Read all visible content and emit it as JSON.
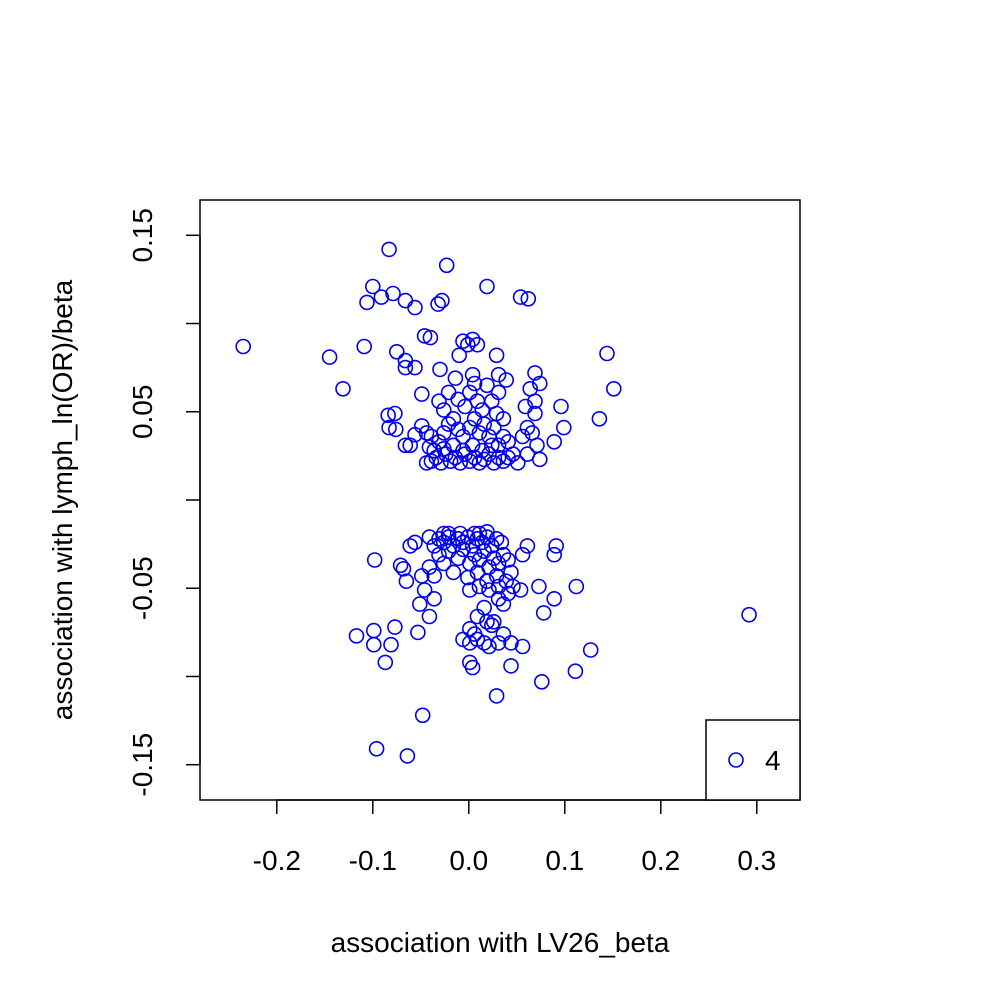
{
  "chart_data": {
    "type": "scatter",
    "title": "",
    "xlabel": "association with LV26_beta",
    "ylabel": "association with lymph_ln(OR)/beta",
    "xlim": [
      -0.28,
      0.345
    ],
    "ylim": [
      -0.17,
      0.17
    ],
    "x_ticks": [
      {
        "value": -0.2,
        "label": "-0.2"
      },
      {
        "value": -0.1,
        "label": "-0.1"
      },
      {
        "value": 0.0,
        "label": "0.0"
      },
      {
        "value": 0.1,
        "label": "0.1"
      },
      {
        "value": 0.2,
        "label": "0.2"
      },
      {
        "value": 0.3,
        "label": "0.3"
      }
    ],
    "y_ticks": [
      {
        "value": 0.15,
        "label": "0.15"
      },
      {
        "value": 0.1,
        "label": ""
      },
      {
        "value": 0.05,
        "label": "0.05"
      },
      {
        "value": 0.0,
        "label": ""
      },
      {
        "value": -0.05,
        "label": "-0.05"
      },
      {
        "value": -0.1,
        "label": ""
      },
      {
        "value": -0.15,
        "label": "-0.15"
      }
    ],
    "grid": false,
    "legend": {
      "position": "bottom-right",
      "entries": [
        {
          "label": "4",
          "marker": "open-circle"
        }
      ]
    },
    "series": [
      {
        "color": "#0000ee",
        "marker": "open-circle",
        "points": [
          [
            -0.235,
            0.087
          ],
          [
            -0.145,
            0.081
          ],
          [
            -0.131,
            0.063
          ],
          [
            -0.109,
            0.087
          ],
          [
            -0.106,
            0.112
          ],
          [
            -0.1,
            0.121
          ],
          [
            -0.091,
            0.115
          ],
          [
            -0.083,
            0.142
          ],
          [
            -0.079,
            0.117
          ],
          [
            -0.066,
            0.113
          ],
          [
            -0.056,
            0.109
          ],
          [
            -0.032,
            0.111
          ],
          [
            -0.028,
            0.113
          ],
          [
            -0.023,
            0.133
          ],
          [
            0.019,
            0.121
          ],
          [
            0.054,
            0.115
          ],
          [
            0.062,
            0.114
          ],
          [
            -0.046,
            0.093
          ],
          [
            -0.04,
            0.092
          ],
          [
            -0.075,
            0.084
          ],
          [
            -0.066,
            0.079
          ],
          [
            -0.066,
            0.075
          ],
          [
            -0.056,
            0.075
          ],
          [
            -0.03,
            0.074
          ],
          [
            -0.01,
            0.082
          ],
          [
            -0.006,
            0.09
          ],
          [
            -0.001,
            0.088
          ],
          [
            0.004,
            0.091
          ],
          [
            0.009,
            0.088
          ],
          [
            0.029,
            0.082
          ],
          [
            -0.014,
            0.069
          ],
          [
            0.004,
            0.071
          ],
          [
            0.006,
            0.066
          ],
          [
            0.019,
            0.065
          ],
          [
            0.031,
            0.071
          ],
          [
            0.039,
            0.068
          ],
          [
            0.069,
            0.072
          ],
          [
            0.074,
            0.066
          ],
          [
            0.064,
            0.063
          ],
          [
            0.144,
            0.083
          ],
          [
            0.151,
            0.063
          ],
          [
            0.136,
            0.046
          ],
          [
            0.096,
            0.053
          ],
          [
            0.099,
            0.041
          ],
          [
            0.089,
            0.033
          ],
          [
            0.069,
            0.056
          ],
          [
            0.069,
            0.049
          ],
          [
            0.059,
            0.053
          ],
          [
            -0.049,
            0.06
          ],
          [
            -0.031,
            0.056
          ],
          [
            -0.026,
            0.051
          ],
          [
            -0.021,
            0.061
          ],
          [
            -0.011,
            0.057
          ],
          [
            -0.004,
            0.053
          ],
          [
            0.001,
            0.061
          ],
          [
            0.009,
            0.056
          ],
          [
            0.014,
            0.051
          ],
          [
            0.024,
            0.056
          ],
          [
            0.031,
            0.061
          ],
          [
            0.029,
            0.049
          ],
          [
            0.036,
            0.046
          ],
          [
            -0.084,
            0.048
          ],
          [
            -0.077,
            0.049
          ],
          [
            -0.083,
            0.041
          ],
          [
            -0.076,
            0.04
          ],
          [
            -0.066,
            0.031
          ],
          [
            -0.061,
            0.031
          ],
          [
            -0.056,
            0.037
          ],
          [
            -0.049,
            0.042
          ],
          [
            -0.044,
            0.038
          ],
          [
            -0.039,
            0.036
          ],
          [
            -0.041,
            0.03
          ],
          [
            -0.036,
            0.028
          ],
          [
            -0.031,
            0.033
          ],
          [
            -0.026,
            0.038
          ],
          [
            -0.021,
            0.043
          ],
          [
            -0.016,
            0.046
          ],
          [
            -0.011,
            0.04
          ],
          [
            -0.006,
            0.036
          ],
          [
            0.001,
            0.041
          ],
          [
            0.006,
            0.046
          ],
          [
            0.011,
            0.038
          ],
          [
            0.016,
            0.043
          ],
          [
            0.021,
            0.036
          ],
          [
            0.026,
            0.041
          ],
          [
            0.031,
            0.031
          ],
          [
            0.036,
            0.036
          ],
          [
            0.041,
            0.033
          ],
          [
            0.056,
            0.036
          ],
          [
            0.061,
            0.041
          ],
          [
            0.066,
            0.038
          ],
          [
            0.071,
            0.031
          ],
          [
            0.074,
            0.023
          ],
          [
            0.061,
            0.026
          ],
          [
            0.051,
            0.021
          ],
          [
            0.046,
            0.026
          ],
          [
            0.041,
            0.024
          ],
          [
            0.036,
            0.022
          ],
          [
            0.031,
            0.024
          ],
          [
            0.026,
            0.021
          ],
          [
            0.021,
            0.026
          ],
          [
            0.016,
            0.023
          ],
          [
            0.011,
            0.021
          ],
          [
            0.006,
            0.024
          ],
          [
            0.001,
            0.022
          ],
          [
            -0.004,
            0.026
          ],
          [
            -0.009,
            0.021
          ],
          [
            -0.014,
            0.024
          ],
          [
            -0.019,
            0.022
          ],
          [
            -0.024,
            0.026
          ],
          [
            -0.029,
            0.021
          ],
          [
            -0.034,
            0.024
          ],
          [
            -0.039,
            0.022
          ],
          [
            -0.044,
            0.021
          ],
          [
            -0.016,
            0.031
          ],
          [
            -0.006,
            0.028
          ],
          [
            0.004,
            0.031
          ],
          [
            0.014,
            0.028
          ],
          [
            0.024,
            0.031
          ],
          [
            -0.026,
            0.029
          ],
          [
            -0.098,
            -0.034
          ],
          [
            -0.087,
            -0.092
          ],
          [
            -0.081,
            -0.082
          ],
          [
            -0.099,
            -0.082
          ],
          [
            -0.099,
            -0.074
          ],
          [
            -0.117,
            -0.077
          ],
          [
            -0.077,
            -0.072
          ],
          [
            -0.071,
            -0.037
          ],
          [
            -0.068,
            -0.039
          ],
          [
            -0.065,
            -0.046
          ],
          [
            -0.061,
            -0.026
          ],
          [
            -0.056,
            -0.024
          ],
          [
            -0.051,
            -0.059
          ],
          [
            -0.049,
            -0.043
          ],
          [
            -0.046,
            -0.051
          ],
          [
            -0.041,
            -0.066
          ],
          [
            -0.036,
            -0.056
          ],
          [
            -0.053,
            -0.075
          ],
          [
            -0.048,
            -0.122
          ],
          [
            -0.096,
            -0.141
          ],
          [
            -0.064,
            -0.145
          ],
          [
            -0.041,
            -0.021
          ],
          [
            -0.036,
            -0.026
          ],
          [
            -0.031,
            -0.022
          ],
          [
            -0.026,
            -0.024
          ],
          [
            -0.021,
            -0.021
          ],
          [
            -0.016,
            -0.026
          ],
          [
            -0.011,
            -0.022
          ],
          [
            -0.006,
            -0.024
          ],
          [
            -0.001,
            -0.021
          ],
          [
            0.004,
            -0.026
          ],
          [
            0.009,
            -0.022
          ],
          [
            0.014,
            -0.024
          ],
          [
            0.019,
            -0.021
          ],
          [
            0.024,
            -0.026
          ],
          [
            0.029,
            -0.022
          ],
          [
            0.034,
            -0.024
          ],
          [
            -0.031,
            -0.031
          ],
          [
            -0.026,
            -0.036
          ],
          [
            -0.021,
            -0.029
          ],
          [
            -0.011,
            -0.033
          ],
          [
            -0.006,
            -0.028
          ],
          [
            0.001,
            -0.036
          ],
          [
            0.006,
            -0.031
          ],
          [
            0.011,
            -0.034
          ],
          [
            0.016,
            -0.029
          ],
          [
            0.021,
            -0.038
          ],
          [
            0.026,
            -0.033
          ],
          [
            0.031,
            -0.036
          ],
          [
            0.036,
            -0.031
          ],
          [
            0.041,
            -0.034
          ],
          [
            -0.041,
            -0.038
          ],
          [
            -0.036,
            -0.043
          ],
          [
            -0.016,
            -0.041
          ],
          [
            -0.001,
            -0.044
          ],
          [
            0.009,
            -0.041
          ],
          [
            0.019,
            -0.046
          ],
          [
            0.029,
            -0.043
          ],
          [
            0.039,
            -0.046
          ],
          [
            0.044,
            -0.041
          ],
          [
            0.001,
            -0.051
          ],
          [
            0.011,
            -0.049
          ],
          [
            0.021,
            -0.051
          ],
          [
            0.031,
            -0.049
          ],
          [
            0.041,
            -0.053
          ],
          [
            0.046,
            -0.049
          ],
          [
            0.054,
            -0.051
          ],
          [
            0.056,
            -0.031
          ],
          [
            0.061,
            -0.026
          ],
          [
            0.091,
            -0.026
          ],
          [
            0.089,
            -0.031
          ],
          [
            0.073,
            -0.049
          ],
          [
            0.112,
            -0.049
          ],
          [
            0.089,
            -0.056
          ],
          [
            0.078,
            -0.064
          ],
          [
            0.031,
            -0.056
          ],
          [
            0.036,
            -0.059
          ],
          [
            0.016,
            -0.061
          ],
          [
            0.009,
            -0.066
          ],
          [
            0.019,
            -0.069
          ],
          [
            0.024,
            -0.071
          ],
          [
            0.026,
            -0.069
          ],
          [
            0.001,
            -0.073
          ],
          [
            0.006,
            -0.076
          ],
          [
            -0.006,
            -0.079
          ],
          [
            0.001,
            -0.081
          ],
          [
            0.009,
            -0.079
          ],
          [
            0.016,
            -0.081
          ],
          [
            0.021,
            -0.083
          ],
          [
            0.031,
            -0.081
          ],
          [
            0.036,
            -0.076
          ],
          [
            0.044,
            -0.081
          ],
          [
            0.056,
            -0.083
          ],
          [
            0.001,
            -0.092
          ],
          [
            0.004,
            -0.095
          ],
          [
            0.044,
            -0.094
          ],
          [
            0.076,
            -0.103
          ],
          [
            0.111,
            -0.097
          ],
          [
            0.127,
            -0.085
          ],
          [
            0.029,
            -0.111
          ],
          [
            0.292,
            -0.065
          ],
          [
            -0.021,
            -0.019
          ],
          [
            0.011,
            -0.019
          ],
          [
            -0.026,
            -0.019
          ],
          [
            0.019,
            -0.018
          ],
          [
            -0.009,
            -0.019
          ],
          [
            0.006,
            -0.019
          ]
        ]
      }
    ]
  }
}
